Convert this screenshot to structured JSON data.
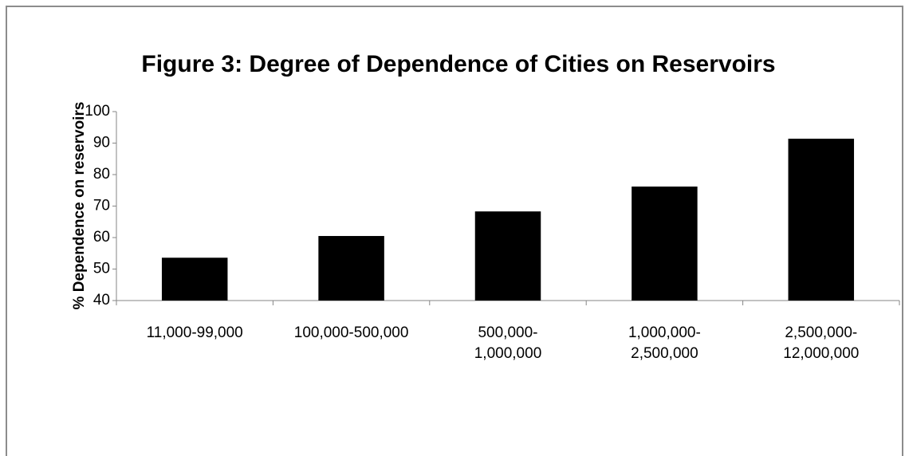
{
  "chart_data": {
    "type": "bar",
    "title": "Figure 3: Degree of Dependence of Cities on Reservoirs",
    "y_label": "% Dependence on reservoirs",
    "categories": [
      "11,000-99,000",
      "100,000-500,000",
      "500,000-1,000,000",
      "1,000,000-2,500,000",
      "2,500,000-12,000,000"
    ],
    "values": [
      53.6,
      60.5,
      68.3,
      76.2,
      91.4
    ],
    "color": "#000000",
    "ylim": [
      40,
      100
    ],
    "yticks": [
      40,
      50,
      60,
      70,
      80,
      90,
      100
    ],
    "grid": false
  }
}
